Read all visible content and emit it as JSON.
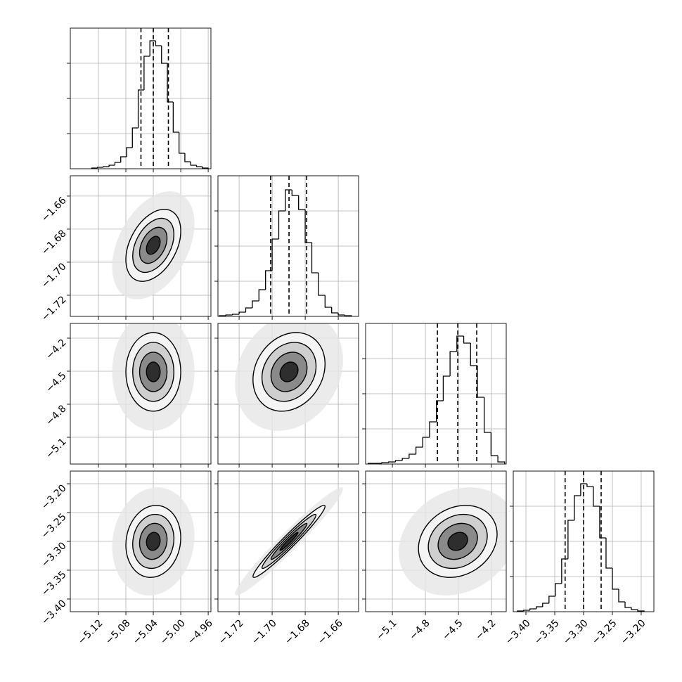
{
  "chart_data": {
    "type": "corner",
    "grid": true,
    "hist_ylim": [
      0,
      200
    ],
    "hist_yticks": [
      50,
      100,
      150
    ],
    "parameters": [
      {
        "range": [
          -5.161,
          -4.956
        ],
        "ticks": [
          {
            "value": -5.12,
            "label": "−5.12"
          },
          {
            "value": -5.08,
            "label": "−5.08"
          },
          {
            "value": -5.04,
            "label": "−5.04"
          },
          {
            "value": -5.0,
            "label": "−5.00"
          },
          {
            "value": -4.96,
            "label": "−4.96"
          }
        ],
        "bins": [
          -5.13,
          -5.1215,
          -5.113,
          -5.1045,
          -5.096,
          -5.0875,
          -5.079,
          -5.0705,
          -5.062,
          -5.0535,
          -5.045,
          -5.0365,
          -5.028,
          -5.0195,
          -5.011,
          -5.0025,
          -4.994,
          -4.9855,
          -4.977,
          -4.9685,
          -4.96
        ],
        "counts": [
          1,
          2,
          3,
          5,
          9,
          17,
          30,
          58,
          112,
          160,
          182,
          175,
          150,
          95,
          52,
          22,
          10,
          5,
          3,
          1
        ],
        "quantiles": [
          -5.058,
          -5.04,
          -5.018
        ]
      },
      {
        "range": [
          -1.7328,
          -1.6477
        ],
        "ticks": [
          {
            "value": -1.72,
            "label": "−1.72"
          },
          {
            "value": -1.7,
            "label": "−1.70"
          },
          {
            "value": -1.68,
            "label": "−1.68"
          },
          {
            "value": -1.66,
            "label": "−1.66"
          }
        ],
        "bins": [
          -1.732,
          -1.728,
          -1.724,
          -1.72,
          -1.716,
          -1.712,
          -1.708,
          -1.704,
          -1.7,
          -1.696,
          -1.692,
          -1.688,
          -1.684,
          -1.68,
          -1.676,
          -1.672,
          -1.668,
          -1.664,
          -1.66,
          -1.656,
          -1.652
        ],
        "counts": [
          1,
          2,
          3,
          6,
          12,
          22,
          38,
          65,
          110,
          150,
          180,
          172,
          152,
          105,
          62,
          30,
          13,
          5,
          2,
          1
        ],
        "quantiles": [
          -1.7009,
          -1.6898,
          -1.6791
        ]
      },
      {
        "range": [
          -5.343,
          -4.066
        ],
        "ticks": [
          {
            "value": -5.1,
            "label": "−5.1"
          },
          {
            "value": -4.8,
            "label": "−4.8"
          },
          {
            "value": -4.5,
            "label": "−4.5"
          },
          {
            "value": -4.2,
            "label": "−4.2"
          }
        ],
        "bins": [
          -5.32,
          -5.258,
          -5.196,
          -5.134,
          -5.072,
          -5.01,
          -4.948,
          -4.886,
          -4.824,
          -4.762,
          -4.7,
          -4.638,
          -4.576,
          -4.514,
          -4.452,
          -4.39,
          -4.328,
          -4.266,
          -4.204,
          -4.142,
          -4.08
        ],
        "counts": [
          1,
          1,
          2,
          3,
          5,
          8,
          14,
          24,
          38,
          60,
          90,
          125,
          160,
          182,
          172,
          140,
          95,
          45,
          12,
          3
        ],
        "quantiles": [
          -4.691,
          -4.506,
          -4.334
        ]
      },
      {
        "range": [
          -3.422,
          -3.178
        ],
        "ticks": [
          {
            "value": -3.4,
            "label": "−3.40"
          },
          {
            "value": -3.35,
            "label": "−3.35"
          },
          {
            "value": -3.3,
            "label": "−3.30"
          },
          {
            "value": -3.25,
            "label": "−3.25"
          },
          {
            "value": -3.2,
            "label": "−3.20"
          }
        ],
        "bins": [
          -3.415,
          -3.404,
          -3.393,
          -3.382,
          -3.371,
          -3.36,
          -3.349,
          -3.338,
          -3.327,
          -3.316,
          -3.305,
          -3.294,
          -3.283,
          -3.272,
          -3.261,
          -3.25,
          -3.239,
          -3.228,
          -3.217,
          -3.206,
          -3.195
        ],
        "counts": [
          1,
          2,
          4,
          7,
          12,
          22,
          40,
          75,
          130,
          165,
          182,
          178,
          150,
          105,
          62,
          32,
          14,
          6,
          3,
          1
        ],
        "quantiles": [
          -3.332,
          -3.3,
          -3.2695
        ]
      }
    ],
    "pairs": [
      {
        "x": 0,
        "y": 1,
        "corr": 0.4
      },
      {
        "x": 0,
        "y": 2,
        "corr": 0.0
      },
      {
        "x": 1,
        "y": 2,
        "corr": 0.2
      },
      {
        "x": 0,
        "y": 3,
        "corr": 0.1
      },
      {
        "x": 1,
        "y": 3,
        "corr": 0.97
      },
      {
        "x": 2,
        "y": 3,
        "corr": 0.2
      }
    ]
  }
}
